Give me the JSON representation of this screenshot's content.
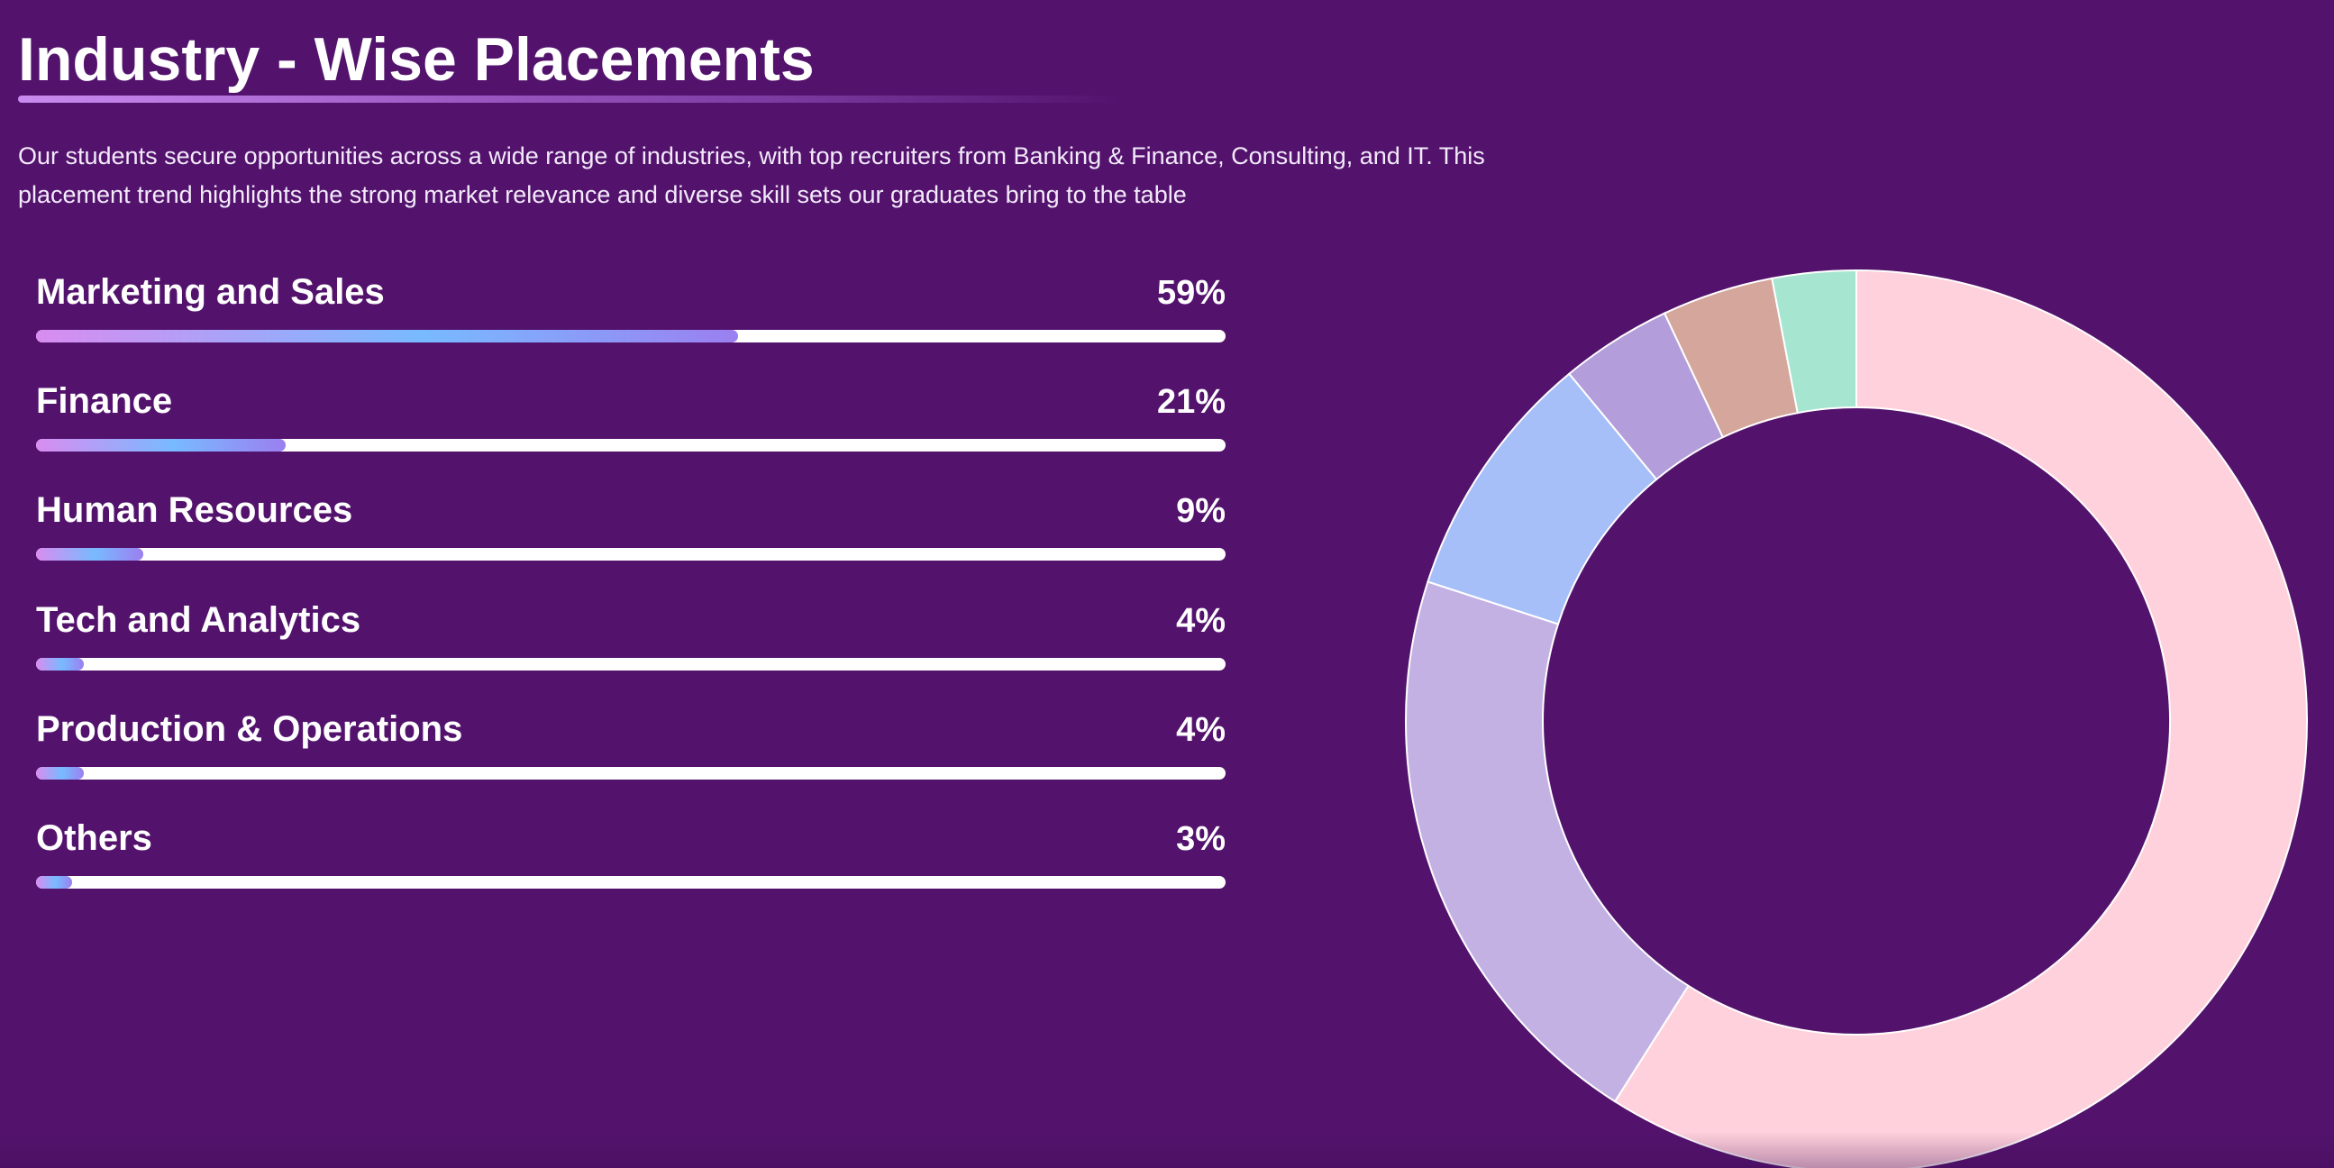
{
  "header": {
    "title": "Industry - Wise Placements",
    "description": "Our students secure opportunities across a wide range of industries, with top recruiters from Banking & Finance, Consulting, and IT. This placement trend highlights the strong market relevance and diverse skill sets our graduates bring to the table"
  },
  "chart_data": {
    "type": "pie",
    "variant": "donut",
    "title": "Industry - Wise Placements",
    "categories": [
      "Marketing and Sales",
      "Finance",
      "Human Resources",
      "Tech and Analytics",
      "Production & Operations",
      "Others"
    ],
    "values": [
      59,
      21,
      9,
      4,
      4,
      3
    ],
    "value_labels": [
      "59%",
      "21%",
      "9%",
      "4%",
      "4%",
      "3%"
    ],
    "unit": "%",
    "colors": [
      "#ffd1dc",
      "#c4b1e4",
      "#a6bff8",
      "#b39ddb",
      "#d4a69c",
      "#a6e6d0"
    ]
  },
  "theme": {
    "background": "#53136d",
    "text": "#ffffff",
    "track": "#ffffff",
    "slice_border": "#ffffff"
  }
}
